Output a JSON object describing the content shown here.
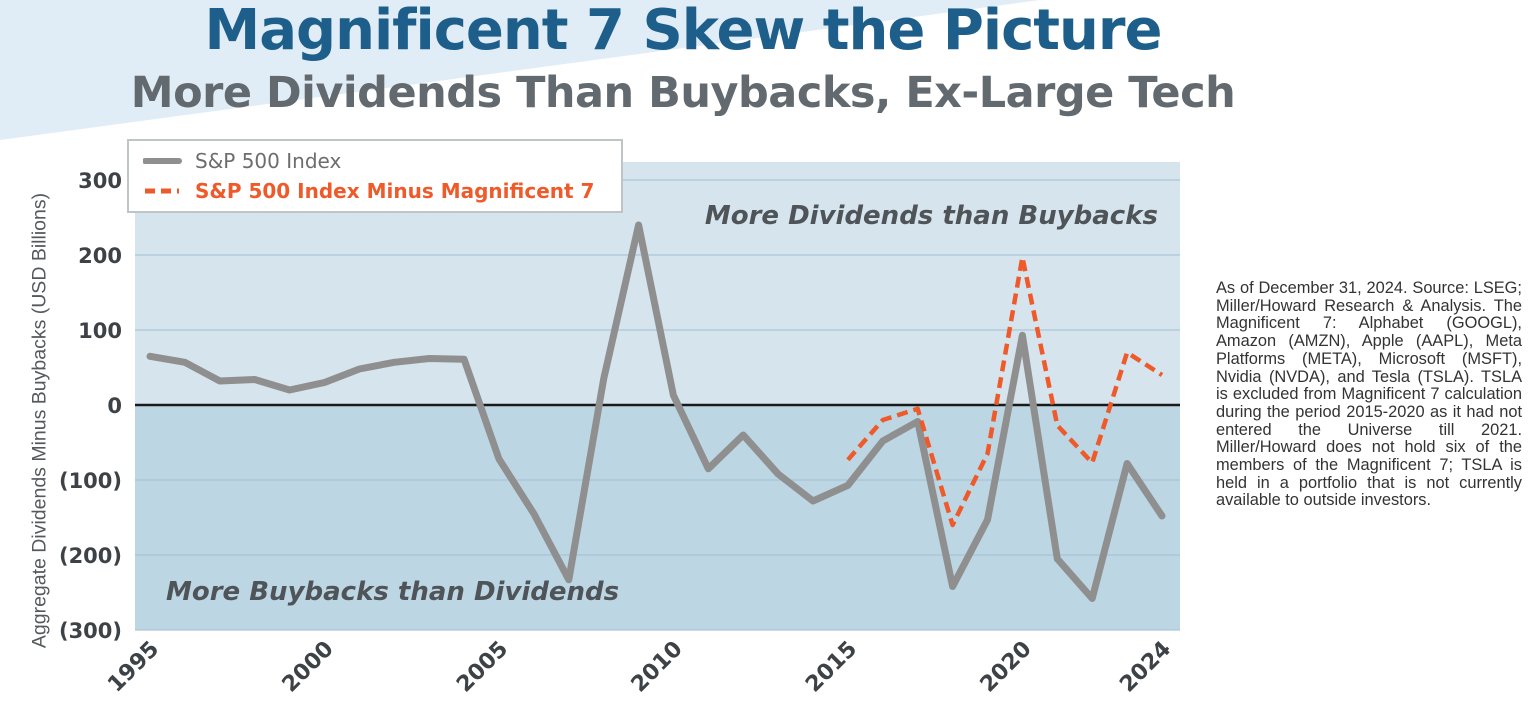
{
  "title": "Magnificent 7 Skew the Picture",
  "subtitle": "More Dividends Than Buybacks, Ex-Large Tech",
  "note": "As of December 31, 2024. Source: LSEG; Miller/Howard Research & Analysis. The Magnificent 7: Alphabet (GOOGL), Amazon (AMZN), Apple (AAPL), Meta Platforms (META), Microsoft (MSFT), Nvidia (NVDA), and Tesla (TSLA).  TSLA is excluded from Magnificent 7 calculation during the period 2015-2020 as it had not entered the Universe till 2021. Miller/Howard does not hold six of the members of the Magnificent 7; TSLA is held in a portfolio that is not currently available to outside investors.",
  "colors": {
    "title": "#1d5f8a",
    "subtitle": "#636a6f",
    "upper_region": "#d6e4ed",
    "lower_region": "#bdd6e4",
    "sp500_line": "#8f8f8f",
    "ex_mag7_line": "#ee5a2a",
    "zero_line": "#1a1a1a"
  },
  "chart_data": {
    "type": "line",
    "title": "Magnificent 7 Skew the Picture",
    "ylabel": "Aggregate Dividends Minus Buybacks (USD Billions)",
    "xlabel": "",
    "ylim": [
      -300,
      300
    ],
    "y_ticks": [
      300,
      200,
      100,
      0,
      -100,
      -200,
      -300
    ],
    "y_tick_labels": [
      "300",
      "200",
      "100",
      "0",
      "(100)",
      "(200)",
      "(300)"
    ],
    "x_range": [
      1995,
      2024
    ],
    "x_ticks": [
      1995,
      2000,
      2005,
      2010,
      2015,
      2020,
      2024
    ],
    "x_tick_labels": [
      "1995",
      "2000",
      "2005",
      "2010",
      "2015",
      "2020",
      "2024"
    ],
    "grid": true,
    "legend_position": "top-left",
    "annotations": [
      {
        "text": "More Dividends than Buybacks",
        "region": "above-zero"
      },
      {
        "text": "More Buybacks than Dividends",
        "region": "below-zero"
      }
    ],
    "series": [
      {
        "name": "S&P 500 Index",
        "style": "solid",
        "x": [
          1995,
          1996,
          1997,
          1998,
          1999,
          2000,
          2001,
          2002,
          2003,
          2004,
          2005,
          2006,
          2007,
          2008,
          2009,
          2010,
          2011,
          2012,
          2013,
          2014,
          2015,
          2016,
          2017,
          2018,
          2019,
          2020,
          2021,
          2022,
          2023,
          2024
        ],
        "values": [
          65,
          57,
          32,
          34,
          20,
          30,
          48,
          57,
          62,
          61,
          -72,
          -145,
          -233,
          35,
          240,
          13,
          -85,
          -40,
          -92,
          -128,
          -107,
          -48,
          -22,
          -242,
          -153,
          93,
          -205,
          -258,
          -78,
          -148
        ]
      },
      {
        "name": "S&P 500 Index Minus Magnificent 7",
        "style": "dashed",
        "x": [
          2015,
          2016,
          2017,
          2018,
          2019,
          2020,
          2021,
          2022,
          2023,
          2024
        ],
        "values": [
          -73,
          -20,
          -5,
          -160,
          -65,
          197,
          -27,
          -77,
          70,
          40
        ]
      }
    ]
  }
}
